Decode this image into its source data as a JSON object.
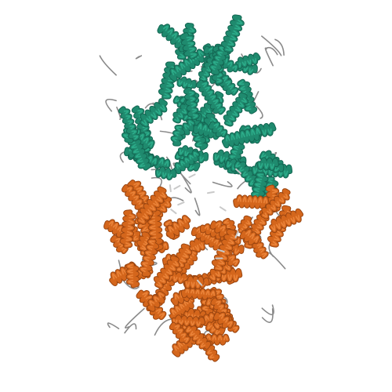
{
  "scene": {
    "background": "#ffffff",
    "subject": "protein-structure-cartoon",
    "representation": "cartoon-ribbon",
    "chains": [
      {
        "id": "A",
        "color": "#1f8a6e",
        "highlight": "#2fb38f",
        "shadow": "#136652"
      },
      {
        "id": "B",
        "color": "#d4661c",
        "highlight": "#ee8a3f",
        "shadow": "#9a4510"
      }
    ],
    "loop_color": "#8a8a8a",
    "ligand_color": "#c9c9c9"
  }
}
